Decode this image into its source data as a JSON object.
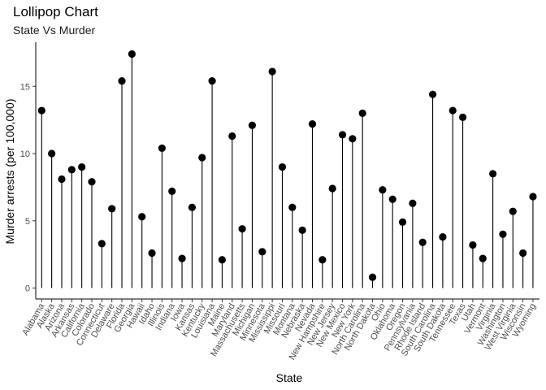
{
  "chart_data": {
    "type": "lollipop",
    "title": "Lollipop Chart",
    "subtitle": "State Vs Murder",
    "xlabel": "State",
    "ylabel": "Murder arrests (per 100,000)",
    "ylim": [
      0,
      17.4
    ],
    "yticks": [
      0,
      5,
      10,
      15
    ],
    "grid": false,
    "color": "#000000",
    "categories": [
      "Alabama",
      "Alaska",
      "Arizona",
      "Arkansas",
      "California",
      "Colorado",
      "Connecticut",
      "Delaware",
      "Florida",
      "Georgia",
      "Hawaii",
      "Idaho",
      "Illinois",
      "Indiana",
      "Iowa",
      "Kansas",
      "Kentucky",
      "Louisiana",
      "Maine",
      "Maryland",
      "Massachusetts",
      "Michigan",
      "Minnesota",
      "Mississippi",
      "Missouri",
      "Montana",
      "Nebraska",
      "Nevada",
      "New Hampshire",
      "New Jersey",
      "New Mexico",
      "New York",
      "North Carolina",
      "North Dakota",
      "Ohio",
      "Oklahoma",
      "Oregon",
      "Pennsylvania",
      "Rhode Island",
      "South Carolina",
      "South Dakota",
      "Tennessee",
      "Texas",
      "Utah",
      "Vermont",
      "Virginia",
      "Washington",
      "West Virginia",
      "Wisconsin",
      "Wyoming"
    ],
    "values": [
      13.2,
      10.0,
      8.1,
      8.8,
      9.0,
      7.9,
      3.3,
      5.9,
      15.4,
      17.4,
      5.3,
      2.6,
      10.4,
      7.2,
      2.2,
      6.0,
      9.7,
      15.4,
      2.1,
      11.3,
      4.4,
      12.1,
      2.7,
      16.1,
      9.0,
      6.0,
      4.3,
      12.2,
      2.1,
      7.4,
      11.4,
      11.1,
      13.0,
      0.8,
      7.3,
      6.6,
      4.9,
      6.3,
      3.4,
      14.4,
      3.8,
      13.2,
      12.7,
      3.2,
      2.2,
      8.5,
      4.0,
      5.7,
      2.6,
      6.8
    ]
  }
}
